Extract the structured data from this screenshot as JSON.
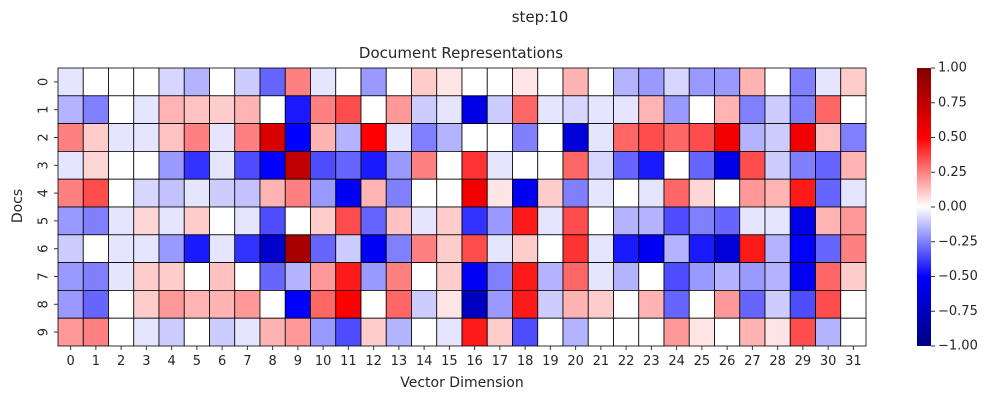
{
  "suptitle": "step:10",
  "chart_data": {
    "type": "heatmap",
    "title": "Document Representations",
    "xlabel": "Vector Dimension",
    "ylabel": "Docs",
    "x_labels": [
      "0",
      "1",
      "2",
      "3",
      "4",
      "5",
      "6",
      "7",
      "8",
      "9",
      "10",
      "11",
      "12",
      "13",
      "14",
      "15",
      "16",
      "17",
      "18",
      "19",
      "20",
      "21",
      "22",
      "23",
      "24",
      "25",
      "26",
      "27",
      "28",
      "29",
      "30",
      "31"
    ],
    "y_labels": [
      "0",
      "1",
      "2",
      "3",
      "4",
      "5",
      "6",
      "7",
      "8",
      "9"
    ],
    "colormap": "bwr",
    "vmin": -1.0,
    "vmax": 1.0,
    "colorbar_ticks": [
      "1.00",
      "0.75",
      "0.50",
      "0.25",
      "0.00",
      "−0.25",
      "−0.50",
      "−0.75",
      "−1.00"
    ],
    "colorbar_tick_values": [
      1.0,
      0.75,
      0.5,
      0.25,
      0.0,
      -0.25,
      -0.5,
      -0.75,
      -1.0
    ],
    "values": [
      [
        -0.05,
        0.0,
        0.0,
        0.0,
        -0.08,
        -0.15,
        0.0,
        -0.1,
        -0.3,
        0.25,
        -0.05,
        0.0,
        -0.2,
        0.0,
        0.1,
        0.05,
        0.0,
        0.0,
        0.05,
        0.0,
        0.15,
        0.0,
        -0.15,
        -0.2,
        -0.08,
        -0.2,
        -0.2,
        0.15,
        0.0,
        -0.25,
        -0.05,
        0.1
      ],
      [
        -0.15,
        -0.25,
        0.0,
        -0.05,
        0.15,
        0.12,
        0.1,
        0.15,
        0.0,
        -0.45,
        0.25,
        0.35,
        0.0,
        0.2,
        -0.1,
        -0.05,
        -0.6,
        -0.1,
        0.3,
        -0.05,
        -0.08,
        -0.05,
        -0.05,
        0.15,
        -0.2,
        0.0,
        0.15,
        -0.25,
        -0.1,
        -0.25,
        0.3,
        0.0
      ],
      [
        0.25,
        0.1,
        -0.05,
        -0.05,
        0.12,
        0.25,
        -0.05,
        0.25,
        0.65,
        -0.5,
        0.15,
        -0.15,
        0.5,
        -0.05,
        -0.25,
        -0.15,
        0.0,
        0.0,
        -0.25,
        0.0,
        -0.65,
        -0.05,
        0.3,
        0.35,
        0.3,
        0.35,
        0.55,
        -0.15,
        -0.1,
        0.55,
        0.12,
        -0.25
      ],
      [
        -0.05,
        0.08,
        0.0,
        0.0,
        -0.2,
        -0.4,
        -0.05,
        -0.35,
        -0.5,
        0.75,
        -0.35,
        -0.3,
        -0.45,
        -0.2,
        0.25,
        0.0,
        0.4,
        -0.05,
        0.0,
        0.0,
        0.3,
        -0.08,
        -0.3,
        -0.45,
        0.0,
        -0.3,
        -0.6,
        0.35,
        -0.1,
        -0.25,
        -0.3,
        0.15
      ],
      [
        0.25,
        0.35,
        0.0,
        -0.08,
        -0.12,
        -0.05,
        -0.1,
        -0.12,
        0.15,
        0.25,
        -0.2,
        -0.55,
        0.15,
        -0.25,
        0.0,
        0.0,
        0.55,
        0.05,
        -0.55,
        0.1,
        -0.25,
        -0.05,
        0.0,
        -0.05,
        0.3,
        0.08,
        0.0,
        0.2,
        0.15,
        0.45,
        -0.3,
        -0.05
      ],
      [
        -0.2,
        -0.25,
        -0.05,
        0.08,
        -0.05,
        0.1,
        0.0,
        -0.05,
        -0.35,
        0.0,
        0.1,
        0.35,
        -0.3,
        0.12,
        -0.05,
        0.1,
        -0.4,
        -0.2,
        0.45,
        -0.05,
        0.35,
        0.0,
        -0.15,
        -0.15,
        -0.35,
        -0.25,
        -0.3,
        -0.05,
        -0.05,
        -0.6,
        0.15,
        0.2
      ],
      [
        -0.1,
        0.0,
        -0.05,
        -0.05,
        -0.2,
        -0.45,
        -0.05,
        -0.4,
        -0.7,
        0.85,
        -0.3,
        -0.1,
        -0.55,
        -0.25,
        0.25,
        0.1,
        0.35,
        -0.05,
        0.1,
        0.0,
        0.4,
        -0.05,
        -0.45,
        -0.55,
        -0.15,
        -0.45,
        -0.65,
        0.45,
        -0.15,
        -0.5,
        -0.3,
        0.25
      ],
      [
        -0.2,
        -0.25,
        -0.05,
        0.1,
        0.1,
        0.0,
        0.12,
        0.0,
        -0.3,
        -0.15,
        0.2,
        0.45,
        -0.2,
        0.25,
        0.0,
        0.1,
        -0.55,
        -0.25,
        0.45,
        -0.15,
        0.3,
        -0.05,
        -0.15,
        0.0,
        -0.35,
        -0.2,
        -0.15,
        -0.2,
        -0.15,
        -0.55,
        0.3,
        0.1
      ],
      [
        -0.2,
        -0.3,
        0.0,
        0.1,
        0.2,
        0.15,
        0.15,
        0.2,
        0.0,
        -0.5,
        0.3,
        0.5,
        0.0,
        0.3,
        -0.1,
        0.05,
        -0.75,
        -0.2,
        0.45,
        -0.1,
        0.15,
        0.1,
        0.0,
        0.15,
        -0.3,
        0.0,
        0.2,
        -0.3,
        -0.1,
        -0.35,
        0.35,
        0.0
      ],
      [
        0.2,
        0.25,
        0.0,
        -0.05,
        -0.1,
        0.0,
        -0.1,
        -0.05,
        0.15,
        0.2,
        -0.2,
        -0.35,
        0.1,
        -0.15,
        0.0,
        -0.05,
        0.45,
        0.1,
        -0.35,
        0.0,
        -0.15,
        0.0,
        0.0,
        0.0,
        0.2,
        0.05,
        0.0,
        0.15,
        0.05,
        0.35,
        -0.15,
        0.0
      ]
    ]
  }
}
